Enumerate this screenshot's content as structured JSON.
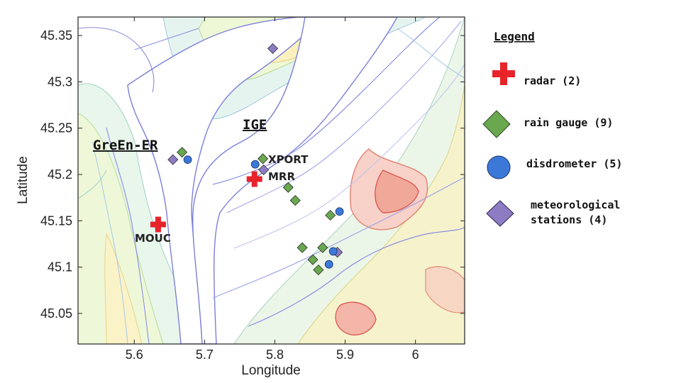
{
  "map": {
    "xlabel": "Longitude",
    "ylabel": "Latitude",
    "x_ticks": [
      "5.6",
      "5.7",
      "5.8",
      "5.9",
      "6"
    ],
    "y_ticks": [
      "45.35",
      "45.3",
      "45.25",
      "45.2",
      "45.15",
      "45.1",
      "45.05"
    ],
    "x_range": [
      5.52,
      6.07
    ],
    "y_range": [
      45.017,
      45.37
    ],
    "institution_labels": [
      "GreEn-ER",
      "IGE"
    ],
    "site_labels": [
      "XPORT",
      "MRR",
      "MOUC"
    ],
    "colors": {
      "radar": "#e8242b",
      "rain_gauge": "#6aa84f",
      "disdrometer": "#3c78d8",
      "met_station": "#8e7cc3",
      "valley_contour": "#7b7fd8",
      "high_contour": "#d9534f"
    }
  },
  "legend": {
    "title": "Legend",
    "items": [
      {
        "icon": "red-cross-icon",
        "label": "radar (2)"
      },
      {
        "icon": "green-diamond-icon",
        "label": "rain gauge (9)"
      },
      {
        "icon": "blue-circle-icon",
        "label": "disdrometer (5)"
      },
      {
        "icon": "purple-diamond-icon",
        "label": "meteorological",
        "label2": "stations (4)"
      }
    ]
  },
  "instruments": {
    "radar": [
      {
        "name": "MOUC",
        "lon": 5.634,
        "lat": 45.146
      },
      {
        "name": "MRR",
        "lon": 5.771,
        "lat": 45.195
      }
    ],
    "rain_gauge": [
      {
        "lon": 5.668,
        "lat": 45.224
      },
      {
        "lon": 5.783,
        "lat": 45.217
      },
      {
        "lon": 5.819,
        "lat": 45.186
      },
      {
        "lon": 5.829,
        "lat": 45.172
      },
      {
        "lon": 5.879,
        "lat": 45.156
      },
      {
        "lon": 5.839,
        "lat": 45.121
      },
      {
        "lon": 5.868,
        "lat": 45.121
      },
      {
        "lon": 5.854,
        "lat": 45.108
      },
      {
        "lon": 5.862,
        "lat": 45.097
      }
    ],
    "disdrometer": [
      {
        "lon": 5.676,
        "lat": 45.216
      },
      {
        "lon": 5.772,
        "lat": 45.211
      },
      {
        "lon": 5.892,
        "lat": 45.16
      },
      {
        "lon": 5.877,
        "lat": 45.103
      },
      {
        "lon": 5.883,
        "lat": 45.117
      }
    ],
    "met_station": [
      {
        "lon": 5.655,
        "lat": 45.216
      },
      {
        "lon": 5.784,
        "lat": 45.205
      },
      {
        "lon": 5.889,
        "lat": 45.116
      },
      {
        "lon": 5.797,
        "lat": 45.336
      }
    ]
  }
}
